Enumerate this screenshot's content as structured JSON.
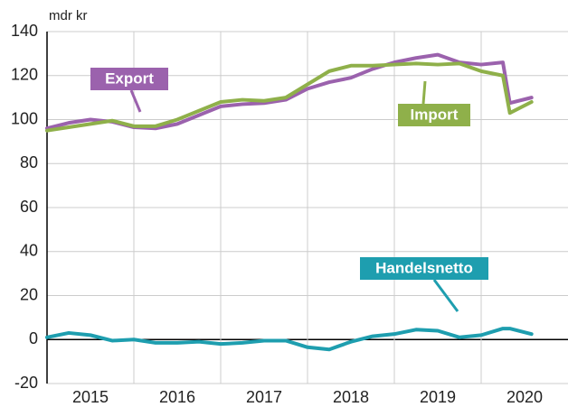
{
  "chart_data": {
    "type": "line",
    "y_label": "mdr kr",
    "x": [
      2015.0,
      2015.25,
      2015.5,
      2015.75,
      2016.0,
      2016.25,
      2016.5,
      2016.75,
      2017.0,
      2017.25,
      2017.5,
      2017.75,
      2018.0,
      2018.25,
      2018.5,
      2018.75,
      2019.0,
      2019.25,
      2019.5,
      2019.75,
      2020.0,
      2020.25,
      2020.33,
      2020.58
    ],
    "series": [
      {
        "name": "Export",
        "color": "#9b62ad",
        "values": [
          96,
          98.5,
          100,
          99,
          96.5,
          96,
          98,
          102,
          106,
          107,
          107.5,
          109,
          114,
          117,
          119,
          123,
          126,
          128,
          129.5,
          126,
          125,
          126,
          107.5,
          110
        ]
      },
      {
        "name": "Import",
        "color": "#8fb04a",
        "values": [
          95,
          96.5,
          98,
          99.5,
          97,
          97,
          100,
          104,
          108,
          109,
          108.5,
          110,
          116,
          122,
          124.5,
          124.5,
          125,
          125.5,
          125,
          125.5,
          122,
          120,
          103,
          108
        ]
      },
      {
        "name": "Handelsnetto",
        "color": "#1e9eaf",
        "values": [
          1,
          3,
          2,
          -0.5,
          0,
          -1.5,
          -1.5,
          -1,
          -2,
          -1.5,
          -0.5,
          -0.5,
          -3.5,
          -4.5,
          -1,
          1.5,
          2.5,
          4.5,
          4,
          1,
          2,
          5,
          5,
          2.5
        ]
      }
    ],
    "xlim": [
      2015,
      2021
    ],
    "xticks": [
      {
        "value": 2015.5,
        "label": "2015"
      },
      {
        "value": 2016.5,
        "label": "2016"
      },
      {
        "value": 2017.5,
        "label": "2017"
      },
      {
        "value": 2018.5,
        "label": "2018"
      },
      {
        "value": 2019.5,
        "label": "2019"
      },
      {
        "value": 2020.5,
        "label": "2020"
      }
    ],
    "xgrid": [
      2016,
      2017,
      2018,
      2019,
      2020
    ],
    "ylim": [
      -20,
      140
    ],
    "yticks": [
      -20,
      0,
      20,
      40,
      60,
      80,
      100,
      120,
      140
    ],
    "grid": true
  }
}
